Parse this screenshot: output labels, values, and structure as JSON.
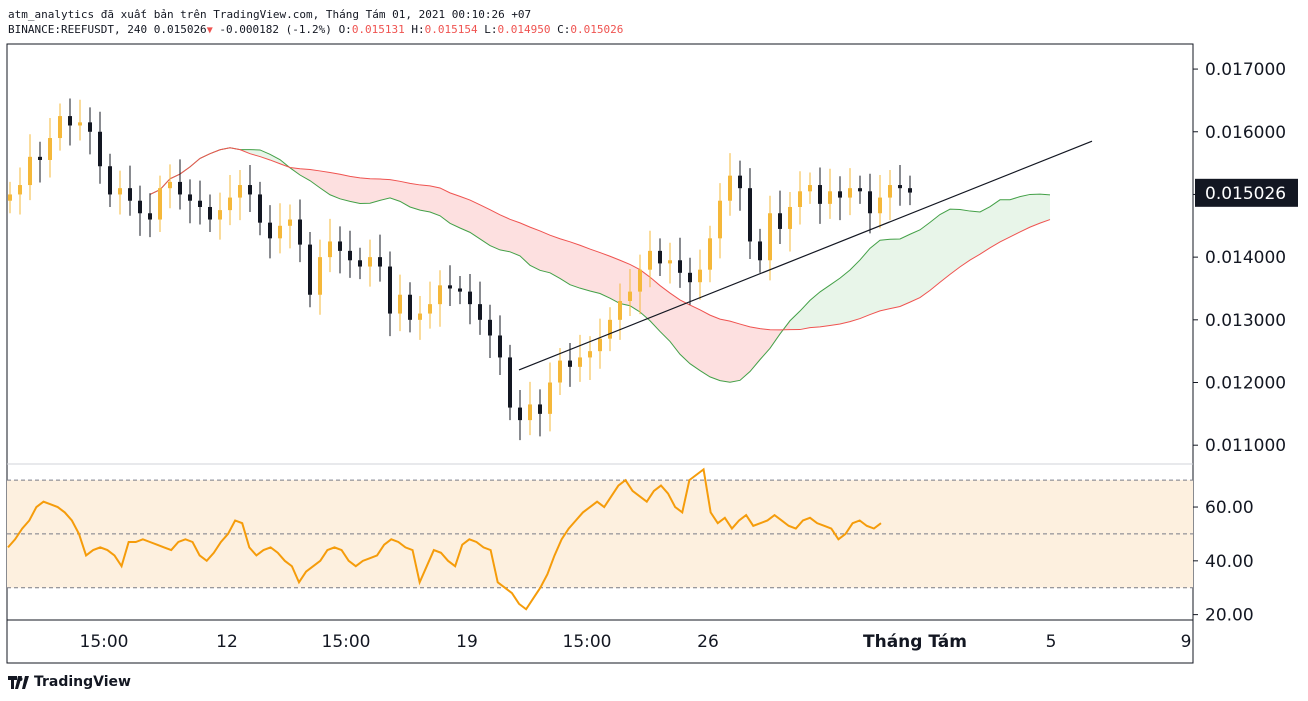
{
  "header": {
    "published_line": "atm_analytics đã xuất bản trên TradingView.com, Tháng Tám 01, 2021 00:10:26 +07",
    "symbol": "BINANCE:REEFUSDT, 240",
    "last": "0.015026",
    "change": "-0.000182 (-1.2%)",
    "o_label": "O:",
    "o": "0.015131",
    "h_label": "H:",
    "h": "0.015154",
    "l_label": "L:",
    "l": "0.014950",
    "c_label": "C:",
    "c": "0.015026"
  },
  "footer": {
    "brand": "TradingView"
  },
  "colors": {
    "bull": "#f5b83a",
    "bear": "#131722",
    "span_a": "#43a047",
    "span_b": "#ef5350",
    "cloud_bull": "#e8f5e9",
    "cloud_bear": "#fde0e0",
    "rsi": "#f59c0b",
    "rsi_band": "#fdf0df"
  },
  "chart_data": [
    {
      "type": "candlestick",
      "symbol": "BINANCE:REEFUSDT",
      "ylim": [
        0.0107,
        0.0174
      ],
      "price_axis": [
        "0.011000",
        "0.012000",
        "0.013000",
        "0.014000",
        "0.015000",
        "0.016000",
        "0.017000"
      ],
      "last_price": "0.015026",
      "time_axis": [
        "15:00",
        "12",
        "15:00",
        "19",
        "15:00",
        "26",
        "Tháng Tám",
        "5",
        "9"
      ],
      "indicator": "ichimoku cloud + trend line",
      "close": [
        0.015,
        0.01515,
        0.0156,
        0.01555,
        0.0159,
        0.01625,
        0.0161,
        0.01615,
        0.016,
        0.01545,
        0.015,
        0.0151,
        0.0149,
        0.0147,
        0.0146,
        0.0151,
        0.0152,
        0.015,
        0.0149,
        0.0148,
        0.0146,
        0.01475,
        0.01495,
        0.01515,
        0.015,
        0.01455,
        0.0143,
        0.0145,
        0.0146,
        0.0142,
        0.0134,
        0.014,
        0.01425,
        0.0141,
        0.01395,
        0.01385,
        0.014,
        0.01385,
        0.0131,
        0.0134,
        0.013,
        0.0131,
        0.01325,
        0.01355,
        0.0135,
        0.01345,
        0.01325,
        0.013,
        0.01275,
        0.0124,
        0.0116,
        0.0114,
        0.01165,
        0.0115,
        0.012,
        0.01235,
        0.01225,
        0.0124,
        0.0125,
        0.0127,
        0.013,
        0.0133,
        0.01345,
        0.0138,
        0.0141,
        0.0139,
        0.01395,
        0.01375,
        0.0136,
        0.0138,
        0.0143,
        0.0149,
        0.0153,
        0.0151,
        0.01425,
        0.01395,
        0.0147,
        0.01445,
        0.0148,
        0.01505,
        0.01515,
        0.01485,
        0.01505,
        0.01495,
        0.0151,
        0.01505,
        0.0147,
        0.01495,
        0.01515,
        0.0151,
        0.01503
      ],
      "trend_line": {
        "x": [
          0.0122,
          0.01585
        ],
        "note": "rising support line"
      }
    },
    {
      "type": "line",
      "indicator": "RSI",
      "ylim": [
        18,
        76
      ],
      "levels": [
        70,
        50,
        30
      ],
      "axis": [
        "20.00",
        "40.00",
        "60.00"
      ],
      "values": [
        45,
        48,
        52,
        55,
        60,
        62,
        61,
        60,
        58,
        55,
        50,
        42,
        44,
        45,
        44,
        42,
        38,
        47,
        47,
        48,
        47,
        46,
        45,
        44,
        47,
        48,
        47,
        42,
        40,
        43,
        47,
        50,
        55,
        54,
        45,
        42,
        44,
        45,
        43,
        40,
        38,
        32,
        36,
        38,
        40,
        44,
        45,
        44,
        40,
        38,
        40,
        41,
        42,
        46,
        48,
        47,
        45,
        44,
        32,
        38,
        44,
        43,
        40,
        38,
        46,
        48,
        47,
        45,
        44,
        32,
        30,
        28,
        24,
        22,
        26,
        30,
        35,
        42,
        48,
        52,
        55,
        58,
        60,
        62,
        60,
        64,
        68,
        70,
        66,
        64,
        62,
        66,
        68,
        65,
        60,
        58,
        70,
        72,
        74,
        58,
        54,
        56,
        52,
        55,
        57,
        53,
        54,
        55,
        57,
        55,
        53,
        52,
        55,
        56,
        54,
        53,
        52,
        48,
        50,
        54,
        55,
        53,
        52,
        54
      ]
    }
  ]
}
